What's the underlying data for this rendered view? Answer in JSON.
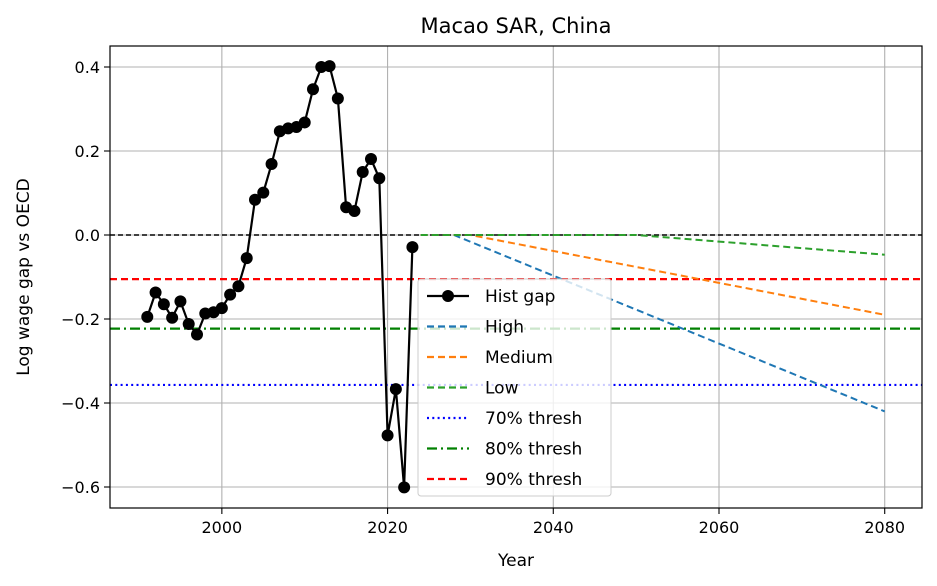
{
  "chart_data": {
    "type": "line",
    "title": "Macao SAR, China",
    "xlabel": "Year",
    "ylabel": "Log wage gap vs OECD",
    "xlim": [
      1986.5,
      2084.5
    ],
    "ylim": [
      -0.65,
      0.45
    ],
    "xticks": [
      2000,
      2020,
      2040,
      2060,
      2080
    ],
    "yticks": [
      0.4,
      0.2,
      0.0,
      -0.2,
      -0.4,
      -0.6
    ],
    "ytick_labels": [
      "0.4",
      "0.2",
      "0.0",
      "−0.2",
      "−0.4",
      "−0.6"
    ],
    "grid": true,
    "legend_position": "lower center",
    "reference_lines": [
      {
        "y": 0.0,
        "color": "#000000",
        "style": "dashed"
      }
    ],
    "series": [
      {
        "name": "Hist gap",
        "color": "#000000",
        "style": "solid-marker",
        "x": [
          1991,
          1992,
          1993,
          1994,
          1995,
          1996,
          1997,
          1998,
          1999,
          2000,
          2001,
          2002,
          2003,
          2004,
          2005,
          2006,
          2007,
          2008,
          2009,
          2010,
          2011,
          2012,
          2013,
          2014,
          2015,
          2016,
          2017,
          2018,
          2019,
          2020,
          2021,
          2022,
          2023
        ],
        "y": [
          -0.195,
          -0.137,
          -0.165,
          -0.197,
          -0.158,
          -0.212,
          -0.237,
          -0.187,
          -0.184,
          -0.174,
          -0.142,
          -0.122,
          -0.055,
          0.084,
          0.101,
          0.169,
          0.247,
          0.254,
          0.257,
          0.268,
          0.347,
          0.4,
          0.402,
          0.325,
          0.066,
          0.057,
          0.15,
          0.181,
          0.135,
          -0.477,
          -0.367,
          -0.601,
          -0.029
        ]
      },
      {
        "name": "High",
        "color": "#1f77b4",
        "style": "dashed",
        "x": [
          2024,
          2028,
          2080
        ],
        "y": [
          0.0,
          0.0,
          -0.42
        ]
      },
      {
        "name": "Medium",
        "color": "#ff7f0e",
        "style": "dashed",
        "x": [
          2024,
          2030,
          2080
        ],
        "y": [
          0.0,
          0.0,
          -0.19
        ]
      },
      {
        "name": "Low",
        "color": "#2ca02c",
        "style": "dashed",
        "x": [
          2024,
          2050,
          2080
        ],
        "y": [
          0.0,
          0.0,
          -0.047
        ]
      },
      {
        "name": "70% thresh",
        "color": "#0000ff",
        "style": "dotted",
        "y_const": -0.357
      },
      {
        "name": "80% thresh",
        "color": "#008000",
        "style": "dashdot",
        "y_const": -0.223
      },
      {
        "name": "90% thresh",
        "color": "#ff0000",
        "style": "dashed",
        "y_const": -0.105
      }
    ]
  }
}
